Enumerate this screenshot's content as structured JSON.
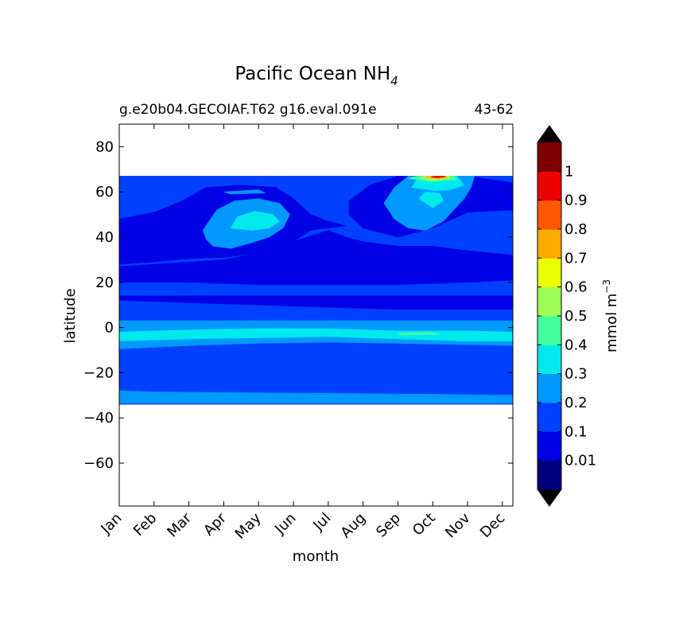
{
  "chart_data": {
    "type": "contourf",
    "title": "Pacific Ocean NH",
    "title_subscript": "4",
    "subtitle_left": "g.e20b04.GECOIAF.T62 g16.eval.091e",
    "subtitle_right": "43-62",
    "xlabel": "month",
    "ylabel": "latitude",
    "x_categories": [
      "Jan",
      "Feb",
      "Mar",
      "Apr",
      "May",
      "Jun",
      "Jul",
      "Aug",
      "Sep",
      "Oct",
      "Nov",
      "Dec"
    ],
    "x_values": [
      1,
      2,
      3,
      4,
      5,
      6,
      7,
      8,
      9,
      10,
      11,
      12
    ],
    "xlim": [
      1,
      12.3
    ],
    "ylim": [
      -79,
      90
    ],
    "y_ticks": [
      80,
      60,
      40,
      20,
      0,
      -20,
      -40,
      -60
    ],
    "y_tick_labels": [
      "80",
      "60",
      "40",
      "20",
      "0",
      "−20",
      "−40",
      "−60"
    ],
    "data_lat_range": [
      -34,
      67
    ],
    "colorbar": {
      "label": "mmol m",
      "label_superscript": "−3",
      "levels": [
        0,
        0.01,
        0.1,
        0.2,
        0.3,
        0.4,
        0.5,
        0.6,
        0.7,
        0.8,
        0.9,
        1.0,
        1.1
      ],
      "tick_values": [
        0.01,
        0.1,
        0.2,
        0.3,
        0.4,
        0.5,
        0.6,
        0.7,
        0.8,
        0.9,
        1.0
      ],
      "tick_labels": [
        "0.01",
        "0.1",
        "0.2",
        "0.3",
        "0.4",
        "0.5",
        "0.6",
        "0.7",
        "0.8",
        "0.9",
        "1"
      ],
      "colors": [
        "#00007f",
        "#0000e6",
        "#0040ff",
        "#0099ff",
        "#00eaee",
        "#43ff9d",
        "#a0ff56",
        "#eaff00",
        "#ffaa00",
        "#ff5800",
        "#ee0000",
        "#7f0000"
      ],
      "extend": "both"
    },
    "regions": [
      {
        "value": 0.15,
        "desc": "background 0.1-0.2 band over all data latitudes"
      },
      {
        "value": 0.05,
        "desc": "0.01-0.1 band ~12 to 27 N, all months"
      },
      {
        "value": 0.05,
        "desc": "0.01-0.1 band ~28 to 48 N spreading to subpolar summer"
      },
      {
        "value": 0.25,
        "desc": "0.2-0.3 band near equator -9 to 3"
      },
      {
        "value": 0.35,
        "desc": "0.3-0.4 band -6 to -1"
      },
      {
        "value": 0.25,
        "desc": "0.2-0.3 blob Apr-Jun 33-57 N"
      },
      {
        "value": 0.35,
        "desc": "0.3-0.4 blob Apr-May 43-52 N"
      },
      {
        "value": 0.25,
        "desc": "0.2-0.3 blob Aug-Nov 40-67 N"
      },
      {
        "value": 0.35,
        "desc": "0.3-0.4 blob Sep-Oct 55-67 N"
      },
      {
        "value": 0.95,
        "desc": "max ~1.0 near 66 N in Oct"
      },
      {
        "value": 0.25,
        "desc": "0.2-0.3 band -33 to -28 S"
      }
    ]
  }
}
